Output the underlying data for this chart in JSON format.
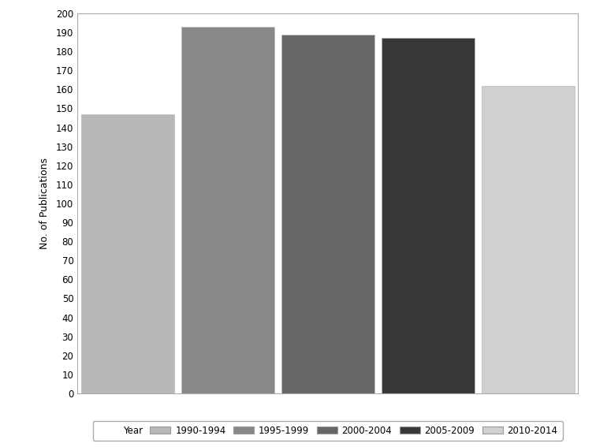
{
  "categories": [
    "1990-1994",
    "1995-1999",
    "2000-2004",
    "2005-2009",
    "2010-2014"
  ],
  "values": [
    147,
    193,
    189,
    187,
    162
  ],
  "bar_colors": [
    "#b8b8b8",
    "#888888",
    "#666666",
    "#383838",
    "#d0d0d0"
  ],
  "ylabel": "No. of Publications",
  "ylim": [
    0,
    200
  ],
  "yticks": [
    0,
    10,
    20,
    30,
    40,
    50,
    60,
    70,
    80,
    90,
    100,
    110,
    120,
    130,
    140,
    150,
    160,
    170,
    180,
    190,
    200
  ],
  "legend_label": "Year",
  "background_color": "#ffffff",
  "bar_width": 0.93
}
